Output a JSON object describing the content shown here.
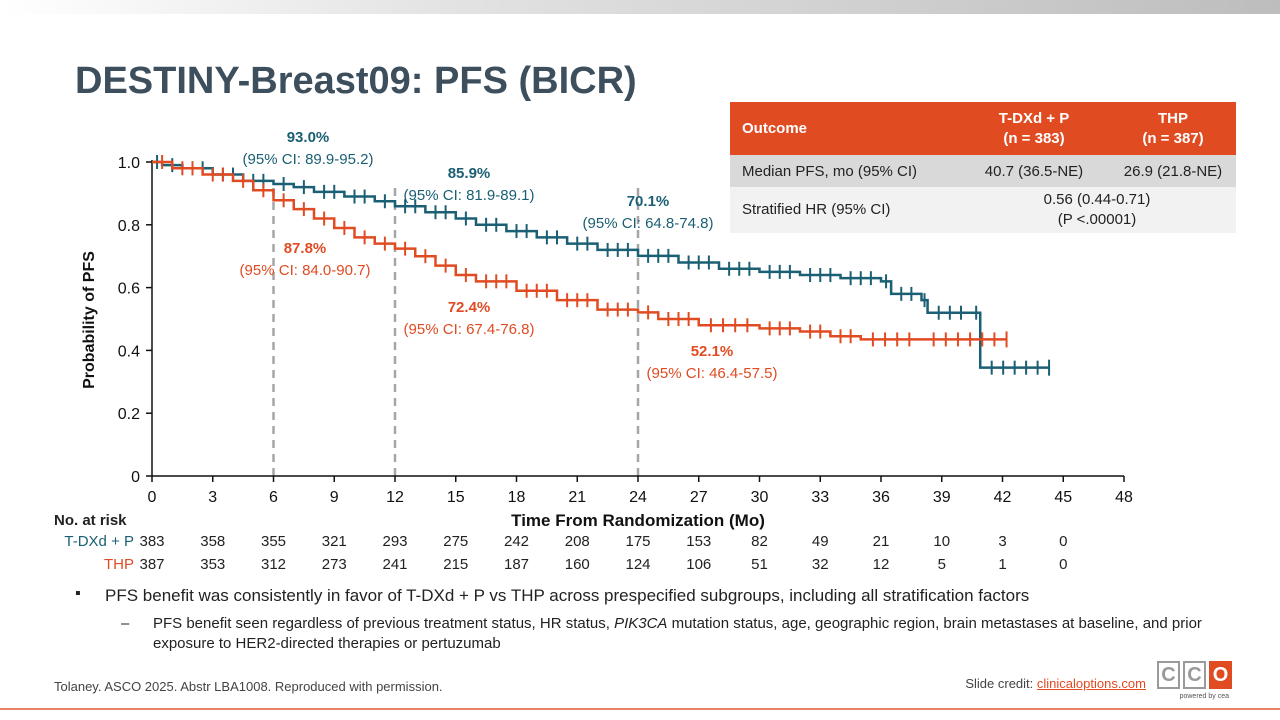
{
  "title": "DESTINY-Breast09: PFS (BICR)",
  "colors": {
    "tdxd": "#1a5f73",
    "thp": "#e04b22",
    "header": "#e04b22"
  },
  "table": {
    "headers": [
      "Outcome",
      "T-DXd + P",
      "(n = 383)",
      "THP",
      "(n = 387)"
    ],
    "rows": [
      {
        "label": "Median PFS, mo (95% CI)",
        "tdxd": "40.7 (36.5-NE)",
        "thp": "26.9 (21.8-NE)"
      },
      {
        "label": "Stratified HR (95% CI)",
        "combined": "0.56 (0.44-0.71)",
        "pval": "(P <.00001)"
      }
    ]
  },
  "chart_data": {
    "type": "line",
    "xlabel": "Time From Randomization (Mo)",
    "ylabel": "Probability of PFS",
    "xlim": [
      0,
      48
    ],
    "ylim": [
      0,
      1.0
    ],
    "xticks": [
      0,
      3,
      6,
      9,
      12,
      15,
      18,
      21,
      24,
      27,
      30,
      33,
      36,
      39,
      42,
      45,
      48
    ],
    "yticks": [
      "0",
      "0.2",
      "0.4",
      "0.6",
      "0.8",
      "1.0"
    ],
    "yticks_values": [
      0,
      0.2,
      0.4,
      0.6,
      0.8,
      1.0
    ],
    "reference_lines_x": [
      6,
      12,
      24
    ],
    "series": [
      {
        "name": "T-DXd + P",
        "color": "#1a5f73",
        "x": [
          0,
          0.5,
          1.5,
          3,
          4.5,
          6,
          7,
          8,
          9.5,
          11,
          12,
          13.5,
          15,
          16,
          17.5,
          19,
          20.5,
          22,
          24,
          26,
          28,
          30,
          32,
          34,
          36,
          36.5,
          38,
          38.3,
          40.5,
          40.9,
          44.3
        ],
        "y": [
          1.0,
          0.99,
          0.98,
          0.96,
          0.94,
          0.93,
          0.92,
          0.905,
          0.89,
          0.875,
          0.859,
          0.84,
          0.82,
          0.8,
          0.78,
          0.76,
          0.74,
          0.72,
          0.701,
          0.68,
          0.66,
          0.65,
          0.64,
          0.63,
          0.62,
          0.58,
          0.56,
          0.52,
          0.52,
          0.345,
          0.345
        ]
      },
      {
        "name": "THP",
        "color": "#e04b22",
        "x": [
          0,
          1,
          2.5,
          4,
          5,
          6,
          7,
          8,
          9,
          10,
          11,
          12,
          13,
          14,
          15,
          16,
          18,
          20,
          22,
          24,
          25,
          27,
          30,
          32,
          33.5,
          35,
          38,
          42.2
        ],
        "y": [
          1.0,
          0.98,
          0.96,
          0.94,
          0.91,
          0.878,
          0.85,
          0.82,
          0.79,
          0.76,
          0.74,
          0.724,
          0.7,
          0.67,
          0.64,
          0.62,
          0.59,
          0.56,
          0.53,
          0.521,
          0.5,
          0.48,
          0.47,
          0.46,
          0.445,
          0.435,
          0.435,
          0.435
        ]
      }
    ],
    "annotations": [
      {
        "series": "T-DXd + P",
        "value": "93.0%",
        "ci": "(95% CI: 89.9-95.2)"
      },
      {
        "series": "T-DXd + P",
        "value": "85.9%",
        "ci": "(95% CI: 81.9-89.1)"
      },
      {
        "series": "T-DXd + P",
        "value": "70.1%",
        "ci": "(95% CI: 64.8-74.8)"
      },
      {
        "series": "THP",
        "value": "87.8%",
        "ci": "(95% CI: 84.0-90.7)"
      },
      {
        "series": "THP",
        "value": "72.4%",
        "ci": "(95% CI: 67.4-76.8)"
      },
      {
        "series": "THP",
        "value": "52.1%",
        "ci": "(95% CI: 46.4-57.5)"
      }
    ]
  },
  "risk_table": {
    "title": "No. at risk",
    "rows": [
      {
        "label": "T-DXd + P",
        "color": "#1a5f73",
        "values": [
          "383",
          "358",
          "355",
          "321",
          "293",
          "275",
          "242",
          "208",
          "175",
          "153",
          "82",
          "49",
          "21",
          "10",
          "3",
          "0"
        ]
      },
      {
        "label": "THP",
        "color": "#e04b22",
        "values": [
          "387",
          "353",
          "312",
          "273",
          "241",
          "215",
          "187",
          "160",
          "124",
          "106",
          "51",
          "32",
          "12",
          "5",
          "1",
          "0"
        ]
      }
    ]
  },
  "bullets": {
    "main": "PFS benefit was consistently in favor of T-DXd + P vs THP across prespecified subgroups, including all stratification factors",
    "sub_pre": "PFS benefit seen regardless of previous treatment status, HR status, ",
    "sub_italic": "PIK3CA",
    "sub_post": " mutation status, age, geographic region, brain metastases at baseline, and prior exposure to HER2-directed therapies or pertuzumab"
  },
  "footer": {
    "citation": "Tolaney. ASCO 2025. Abstr LBA1008. Reproduced with permission.",
    "credit_label": "Slide credit: ",
    "credit_link": "clinicaloptions.com"
  },
  "logo": {
    "letters": [
      "C",
      "C",
      "O"
    ],
    "powered": "powered by cea"
  }
}
